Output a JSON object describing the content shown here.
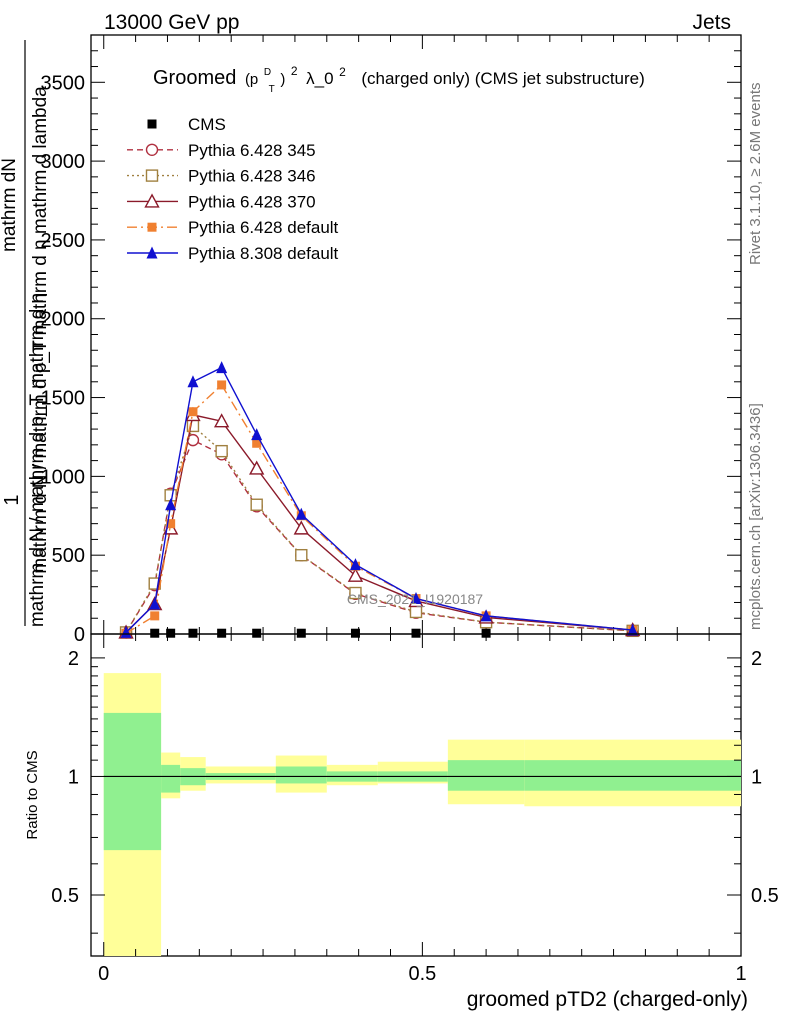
{
  "header": {
    "left": "13000 GeV pp",
    "right": "Jets"
  },
  "side_labels": {
    "rivet": "Rivet 3.1.10, ≥ 2.6M events",
    "mcplots": "mcplots.cern.ch [arXiv:1306.3436]"
  },
  "watermark": "CMS_2021_I1920187",
  "colors": {
    "cms": "#000000",
    "p345": "#b03040",
    "p346": "#a08040",
    "p370": "#8b1a2a",
    "p6def": "#f08030",
    "p8def": "#1010d0",
    "band_inner": "#90f090",
    "band_outer": "#ffff99"
  },
  "chart_data": [
    {
      "type": "line",
      "title_main": "Groomed",
      "title_sym_p": "(p",
      "title_sym_sup": "D",
      "title_sym_sub": "T",
      "title_sym_close": ")",
      "title_sym_2": "2",
      "title_rest": "λ_0",
      "title_rest_sup": "2",
      "title_tail": "(charged only) (CMS jet substructure)",
      "ylabel_top": "1",
      "ylabel_lines": [
        "mathrm d N / mathrm d p_T mathrm d η  mathrm d lambda",
        "mathrm dN",
        "mathrm d N / mathrm d p_T mathrm d η"
      ],
      "ylabel_frac_num": "mathrm d²N",
      "ylabel_frac_den": "mathrm d N / mathrm d p_T mathrm d η mathrm d lambda",
      "ylim": [
        0,
        3800
      ],
      "yticks": [
        "0",
        "500",
        "1000",
        "1500",
        "2000",
        "2500",
        "3000",
        "3500"
      ],
      "ytick_values": [
        0,
        500,
        1000,
        1500,
        2000,
        2500,
        3000,
        3500
      ],
      "xlim": [
        -0.02,
        1.0
      ],
      "legend_position": "top-left",
      "series": [
        {
          "name": "CMS",
          "key": "cms",
          "x": [
            0.035,
            0.08,
            0.105,
            0.14,
            0.185,
            0.24,
            0.31,
            0.395,
            0.49,
            0.6,
            0.83
          ],
          "y": [
            0,
            5,
            5,
            5,
            5,
            5,
            5,
            5,
            5,
            5,
            0
          ]
        },
        {
          "name": "Pythia 6.428 345",
          "key": "p345",
          "x": [
            0.035,
            0.08,
            0.105,
            0.14,
            0.185,
            0.24,
            0.31,
            0.395,
            0.49,
            0.6,
            0.83
          ],
          "y": [
            10,
            310,
            890,
            1230,
            1140,
            810,
            500,
            255,
            135,
            75,
            20
          ]
        },
        {
          "name": "Pythia 6.428 346",
          "key": "p346",
          "x": [
            0.035,
            0.08,
            0.105,
            0.14,
            0.185,
            0.24,
            0.31,
            0.395,
            0.49,
            0.6,
            0.83
          ],
          "y": [
            10,
            320,
            880,
            1320,
            1160,
            820,
            500,
            260,
            140,
            75,
            20
          ]
        },
        {
          "name": "Pythia 6.428 370",
          "key": "p370",
          "x": [
            0.035,
            0.08,
            0.105,
            0.14,
            0.185,
            0.24,
            0.31,
            0.395,
            0.49,
            0.6,
            0.83
          ],
          "y": [
            10,
            190,
            670,
            1390,
            1350,
            1050,
            670,
            370,
            210,
            105,
            25
          ]
        },
        {
          "name": "Pythia 6.428 default",
          "key": "p6def",
          "x": [
            0.035,
            0.08,
            0.105,
            0.14,
            0.185,
            0.24,
            0.31,
            0.395,
            0.49,
            0.6,
            0.83
          ],
          "y": [
            5,
            115,
            700,
            1410,
            1580,
            1210,
            750,
            430,
            225,
            115,
            25
          ]
        },
        {
          "name": "Pythia 8.308 default",
          "key": "p8def",
          "x": [
            0.035,
            0.08,
            0.105,
            0.14,
            0.185,
            0.24,
            0.31,
            0.395,
            0.49,
            0.6,
            0.83
          ],
          "y": [
            10,
            190,
            820,
            1600,
            1690,
            1265,
            760,
            440,
            225,
            115,
            25
          ]
        }
      ]
    },
    {
      "type": "area",
      "ylabel": "Ratio to CMS",
      "xlabel": "groomed pTD2 (charged-only)",
      "xticks": [
        "0",
        "0.5",
        "1"
      ],
      "xtick_values": [
        0,
        0.5,
        1
      ],
      "yticks": [
        "0.5",
        "1",
        "2"
      ],
      "ytick_values": [
        0.5,
        1,
        2
      ],
      "ylim": [
        0.35,
        2.3
      ],
      "log_scale_y": true,
      "bins": [
        {
          "x0": 0.0,
          "x1": 0.09,
          "inner": [
            0.65,
            1.45
          ],
          "outer": [
            0.3,
            1.83
          ]
        },
        {
          "x0": 0.09,
          "x1": 0.12,
          "inner": [
            0.91,
            1.07
          ],
          "outer": [
            0.88,
            1.15
          ]
        },
        {
          "x0": 0.12,
          "x1": 0.16,
          "inner": [
            0.95,
            1.05
          ],
          "outer": [
            0.92,
            1.12
          ]
        },
        {
          "x0": 0.16,
          "x1": 0.27,
          "inner": [
            0.98,
            1.02
          ],
          "outer": [
            0.96,
            1.06
          ]
        },
        {
          "x0": 0.27,
          "x1": 0.35,
          "inner": [
            0.96,
            1.06
          ],
          "outer": [
            0.91,
            1.13
          ]
        },
        {
          "x0": 0.35,
          "x1": 0.43,
          "inner": [
            0.97,
            1.03
          ],
          "outer": [
            0.95,
            1.07
          ]
        },
        {
          "x0": 0.43,
          "x1": 0.54,
          "inner": [
            0.97,
            1.03
          ],
          "outer": [
            0.96,
            1.09
          ]
        },
        {
          "x0": 0.54,
          "x1": 0.66,
          "inner": [
            0.92,
            1.1
          ],
          "outer": [
            0.85,
            1.24
          ]
        },
        {
          "x0": 0.66,
          "x1": 1.0,
          "inner": [
            0.92,
            1.1
          ],
          "outer": [
            0.84,
            1.24
          ]
        }
      ]
    }
  ]
}
